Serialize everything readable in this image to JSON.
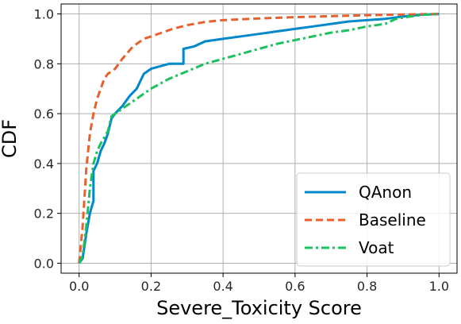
{
  "chart_data": {
    "type": "line",
    "xlabel": "Severe_Toxicity Score",
    "ylabel": "CDF",
    "xlim": [
      -0.05,
      1.05
    ],
    "ylim": [
      -0.04,
      1.04
    ],
    "x_ticks": [
      0.0,
      0.2,
      0.4,
      0.6,
      0.8,
      1.0
    ],
    "y_ticks": [
      0.0,
      0.2,
      0.4,
      0.6,
      0.8,
      1.0
    ],
    "x_tick_labels": [
      "0.0",
      "0.2",
      "0.4",
      "0.6",
      "0.8",
      "1.0"
    ],
    "y_tick_labels": [
      "0.0",
      "0.2",
      "0.4",
      "0.6",
      "0.8",
      "1.0"
    ],
    "grid": true,
    "legend_position": "lower right",
    "series": [
      {
        "name": "QAnon",
        "color": "#0087cc",
        "dash": "solid",
        "points": [
          [
            0.0,
            0.0
          ],
          [
            0.01,
            0.02
          ],
          [
            0.02,
            0.12
          ],
          [
            0.03,
            0.2
          ],
          [
            0.04,
            0.25
          ],
          [
            0.04,
            0.37
          ],
          [
            0.05,
            0.4
          ],
          [
            0.06,
            0.45
          ],
          [
            0.07,
            0.48
          ],
          [
            0.08,
            0.52
          ],
          [
            0.09,
            0.58
          ],
          [
            0.1,
            0.6
          ],
          [
            0.12,
            0.63
          ],
          [
            0.14,
            0.67
          ],
          [
            0.16,
            0.7
          ],
          [
            0.17,
            0.73
          ],
          [
            0.18,
            0.76
          ],
          [
            0.2,
            0.78
          ],
          [
            0.25,
            0.8
          ],
          [
            0.29,
            0.8
          ],
          [
            0.29,
            0.86
          ],
          [
            0.32,
            0.87
          ],
          [
            0.35,
            0.89
          ],
          [
            0.4,
            0.9
          ],
          [
            0.45,
            0.91
          ],
          [
            0.5,
            0.92
          ],
          [
            0.55,
            0.93
          ],
          [
            0.6,
            0.94
          ],
          [
            0.65,
            0.95
          ],
          [
            0.7,
            0.96
          ],
          [
            0.75,
            0.97
          ],
          [
            0.8,
            0.975
          ],
          [
            0.85,
            0.98
          ],
          [
            0.9,
            0.99
          ],
          [
            0.95,
            0.997
          ],
          [
            1.0,
            1.0
          ]
        ]
      },
      {
        "name": "Baseline",
        "color": "#e8602c",
        "dash": "dashed",
        "points": [
          [
            0.0,
            0.0
          ],
          [
            0.01,
            0.15
          ],
          [
            0.02,
            0.38
          ],
          [
            0.03,
            0.52
          ],
          [
            0.04,
            0.6
          ],
          [
            0.05,
            0.66
          ],
          [
            0.06,
            0.7
          ],
          [
            0.07,
            0.74
          ],
          [
            0.08,
            0.76
          ],
          [
            0.1,
            0.78
          ],
          [
            0.12,
            0.82
          ],
          [
            0.15,
            0.87
          ],
          [
            0.18,
            0.9
          ],
          [
            0.22,
            0.92
          ],
          [
            0.26,
            0.94
          ],
          [
            0.3,
            0.955
          ],
          [
            0.35,
            0.968
          ],
          [
            0.4,
            0.975
          ],
          [
            0.5,
            0.982
          ],
          [
            0.6,
            0.987
          ],
          [
            0.7,
            0.991
          ],
          [
            0.8,
            0.995
          ],
          [
            0.9,
            0.998
          ],
          [
            1.0,
            1.0
          ]
        ]
      },
      {
        "name": "Voat",
        "color": "#1cc05c",
        "dash": "dashdot",
        "points": [
          [
            0.0,
            0.0
          ],
          [
            0.01,
            0.03
          ],
          [
            0.02,
            0.15
          ],
          [
            0.03,
            0.3
          ],
          [
            0.04,
            0.4
          ],
          [
            0.05,
            0.45
          ],
          [
            0.06,
            0.48
          ],
          [
            0.08,
            0.53
          ],
          [
            0.09,
            0.59
          ],
          [
            0.11,
            0.61
          ],
          [
            0.13,
            0.63
          ],
          [
            0.16,
            0.66
          ],
          [
            0.2,
            0.7
          ],
          [
            0.25,
            0.74
          ],
          [
            0.3,
            0.77
          ],
          [
            0.35,
            0.8
          ],
          [
            0.4,
            0.82
          ],
          [
            0.45,
            0.84
          ],
          [
            0.5,
            0.86
          ],
          [
            0.55,
            0.88
          ],
          [
            0.6,
            0.895
          ],
          [
            0.65,
            0.91
          ],
          [
            0.7,
            0.925
          ],
          [
            0.75,
            0.935
          ],
          [
            0.8,
            0.95
          ],
          [
            0.85,
            0.96
          ],
          [
            0.88,
            0.98
          ],
          [
            0.92,
            0.99
          ],
          [
            0.96,
            0.997
          ],
          [
            1.0,
            1.0
          ]
        ]
      }
    ]
  }
}
